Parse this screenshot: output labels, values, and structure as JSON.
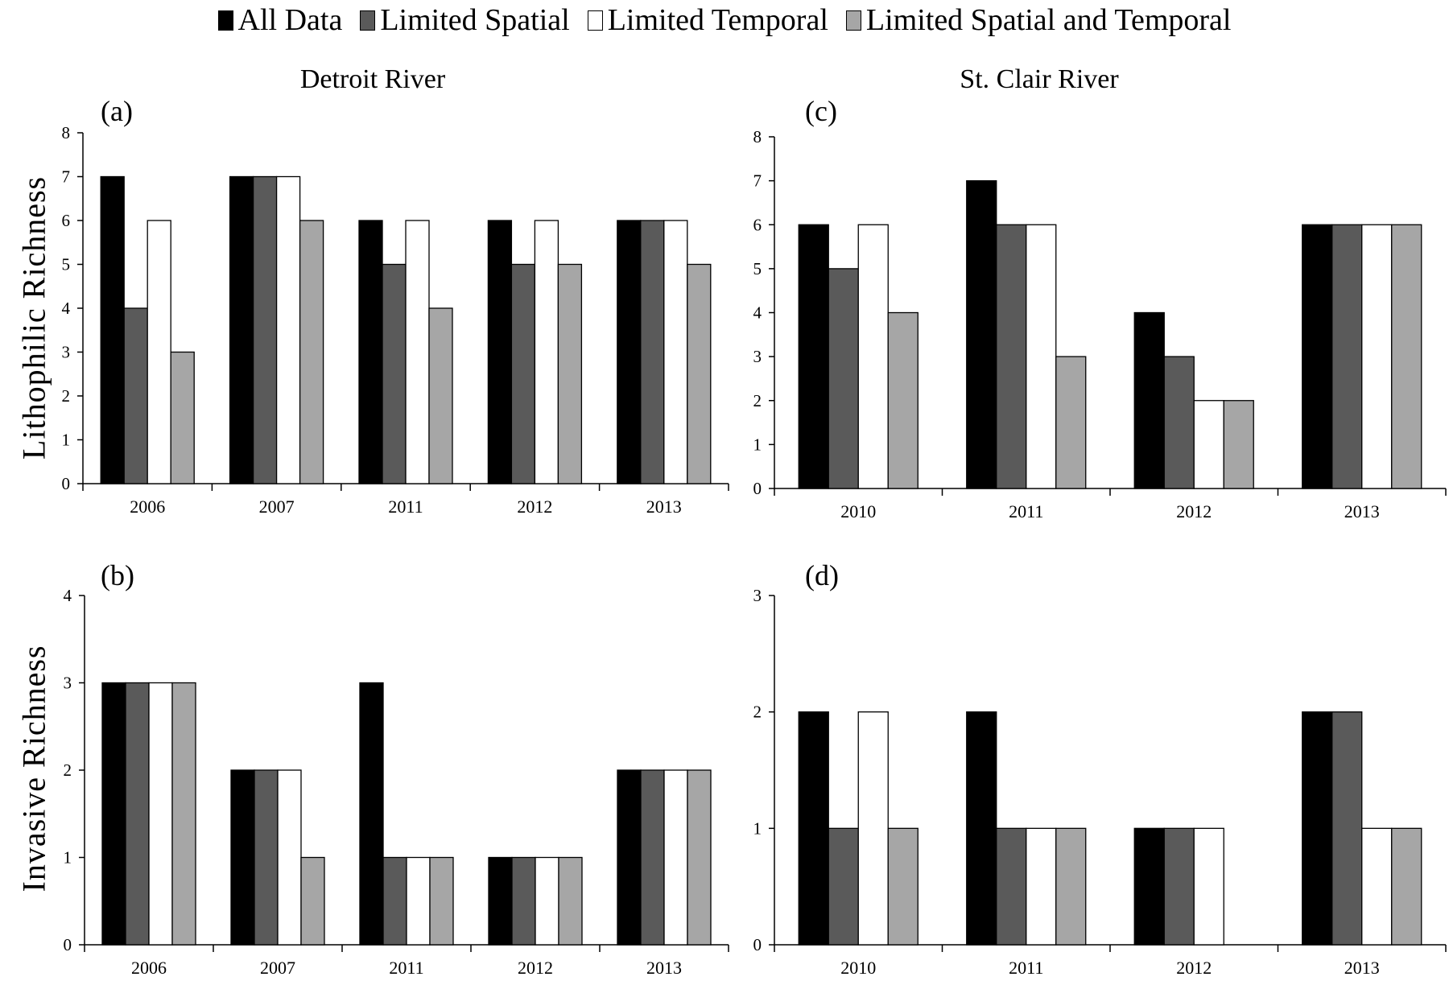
{
  "figure": {
    "colors": {
      "All Data": "#000000",
      "Limited Spatial": "#5a5a5a",
      "Limited Temporal": "#ffffff",
      "Limited Spatial and Temporal": "#a6a6a6"
    },
    "legend": [
      "All Data",
      "Limited Spatial",
      "Limited Temporal",
      "Limited Spatial and Temporal"
    ],
    "column_titles": [
      "Detroit River",
      "St. Clair River"
    ],
    "row_labels": [
      "Lithophilic Richness",
      "Invasive Richness"
    ]
  },
  "chart_data": [
    {
      "type": "bar",
      "panel": "(a)",
      "title": "Detroit River",
      "ylabel": "Lithophilic Richness",
      "xlabel": "",
      "categories": [
        "2006",
        "2007",
        "2011",
        "2012",
        "2013"
      ],
      "ylim": [
        0,
        8
      ],
      "yticks": [
        0,
        1,
        2,
        3,
        4,
        5,
        6,
        7,
        8
      ],
      "grid": false,
      "legend_position": "top",
      "series": [
        {
          "name": "All Data",
          "values": [
            7,
            7,
            6,
            6,
            6
          ]
        },
        {
          "name": "Limited Spatial",
          "values": [
            4,
            7,
            5,
            5,
            6
          ]
        },
        {
          "name": "Limited Temporal",
          "values": [
            6,
            7,
            6,
            6,
            6
          ]
        },
        {
          "name": "Limited Spatial and Temporal",
          "values": [
            3,
            6,
            4,
            5,
            5
          ]
        }
      ]
    },
    {
      "type": "bar",
      "panel": "(b)",
      "title": "",
      "ylabel": "Invasive Richness",
      "xlabel": "",
      "categories": [
        "2006",
        "2007",
        "2011",
        "2012",
        "2013"
      ],
      "ylim": [
        0,
        4
      ],
      "yticks": [
        0,
        1,
        2,
        3,
        4
      ],
      "grid": false,
      "series": [
        {
          "name": "All Data",
          "values": [
            3,
            2,
            3,
            1,
            2
          ]
        },
        {
          "name": "Limited Spatial",
          "values": [
            3,
            2,
            1,
            1,
            2
          ]
        },
        {
          "name": "Limited Temporal",
          "values": [
            3,
            2,
            1,
            1,
            2
          ]
        },
        {
          "name": "Limited Spatial and Temporal",
          "values": [
            3,
            1,
            1,
            1,
            2
          ]
        }
      ]
    },
    {
      "type": "bar",
      "panel": "(c)",
      "title": "St. Clair River",
      "ylabel": "",
      "xlabel": "",
      "categories": [
        "2010",
        "2011",
        "2012",
        "2013"
      ],
      "ylim": [
        0,
        8
      ],
      "yticks": [
        0,
        1,
        2,
        3,
        4,
        5,
        6,
        7,
        8
      ],
      "grid": false,
      "series": [
        {
          "name": "All Data",
          "values": [
            6,
            7,
            4,
            6
          ]
        },
        {
          "name": "Limited Spatial",
          "values": [
            5,
            6,
            3,
            6
          ]
        },
        {
          "name": "Limited Temporal",
          "values": [
            6,
            6,
            2,
            6
          ]
        },
        {
          "name": "Limited Spatial and Temporal",
          "values": [
            4,
            3,
            2,
            6
          ]
        }
      ]
    },
    {
      "type": "bar",
      "panel": "(d)",
      "title": "",
      "ylabel": "",
      "xlabel": "",
      "categories": [
        "2010",
        "2011",
        "2012",
        "2013"
      ],
      "ylim": [
        0,
        3
      ],
      "yticks": [
        0,
        1,
        2,
        3
      ],
      "grid": false,
      "series": [
        {
          "name": "All Data",
          "values": [
            2,
            2,
            1,
            2
          ]
        },
        {
          "name": "Limited Spatial",
          "values": [
            1,
            1,
            1,
            2
          ]
        },
        {
          "name": "Limited Temporal",
          "values": [
            2,
            1,
            1,
            1
          ]
        },
        {
          "name": "Limited Spatial and Temporal",
          "values": [
            1,
            1,
            0,
            1
          ]
        }
      ]
    }
  ]
}
